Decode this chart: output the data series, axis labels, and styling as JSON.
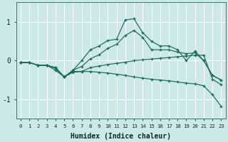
{
  "xlabel": "Humidex (Indice chaleur)",
  "bg_color": "#cce8e8",
  "grid_color": "#ffffff",
  "line_color": "#1a6b5a",
  "xlim": [
    -0.5,
    23.5
  ],
  "ylim": [
    -1.5,
    1.5
  ],
  "xticks": [
    0,
    1,
    2,
    3,
    4,
    5,
    6,
    7,
    8,
    9,
    10,
    11,
    12,
    13,
    14,
    15,
    16,
    17,
    18,
    19,
    20,
    21,
    22,
    23
  ],
  "yticks": [
    -1,
    0,
    1
  ],
  "series": [
    {
      "x": [
        0,
        1,
        2,
        3,
        4,
        5,
        6,
        7,
        8,
        9,
        10,
        11,
        12,
        13,
        14,
        15,
        16,
        17,
        18,
        19,
        20,
        21,
        22,
        23
      ],
      "y": [
        -0.05,
        -0.05,
        -0.12,
        -0.12,
        -0.18,
        -0.42,
        -0.25,
        0.0,
        0.28,
        0.38,
        0.52,
        0.55,
        1.05,
        1.08,
        0.72,
        0.5,
        0.38,
        0.38,
        0.28,
        0.0,
        0.25,
        0.0,
        -0.38,
        -0.5
      ]
    },
    {
      "x": [
        0,
        1,
        2,
        3,
        4,
        5,
        6,
        7,
        8,
        9,
        10,
        11,
        12,
        13,
        14,
        15,
        16,
        17,
        18,
        19,
        20,
        21,
        22,
        23
      ],
      "y": [
        -0.05,
        -0.05,
        -0.12,
        -0.12,
        -0.18,
        -0.42,
        -0.25,
        -0.15,
        0.05,
        0.15,
        0.32,
        0.42,
        0.65,
        0.78,
        0.6,
        0.28,
        0.28,
        0.28,
        0.22,
        0.18,
        0.2,
        0.0,
        -0.38,
        -0.5
      ]
    },
    {
      "x": [
        0,
        1,
        2,
        3,
        4,
        5,
        6,
        7,
        8,
        9,
        10,
        11,
        12,
        13,
        14,
        15,
        16,
        17,
        18,
        19,
        20,
        21,
        22,
        23
      ],
      "y": [
        -0.05,
        -0.05,
        -0.12,
        -0.12,
        -0.25,
        -0.42,
        -0.3,
        -0.28,
        -0.18,
        -0.14,
        -0.1,
        -0.07,
        -0.04,
        0.0,
        0.02,
        0.04,
        0.06,
        0.08,
        0.1,
        0.12,
        0.14,
        0.14,
        -0.48,
        -0.62
      ]
    },
    {
      "x": [
        0,
        1,
        2,
        3,
        4,
        5,
        6,
        7,
        8,
        9,
        10,
        11,
        12,
        13,
        14,
        15,
        16,
        17,
        18,
        19,
        20,
        21,
        22,
        23
      ],
      "y": [
        -0.05,
        -0.05,
        -0.12,
        -0.12,
        -0.2,
        -0.42,
        -0.28,
        -0.28,
        -0.28,
        -0.3,
        -0.32,
        -0.35,
        -0.38,
        -0.42,
        -0.45,
        -0.48,
        -0.5,
        -0.52,
        -0.55,
        -0.58,
        -0.6,
        -0.65,
        -0.88,
        -1.18
      ]
    }
  ]
}
